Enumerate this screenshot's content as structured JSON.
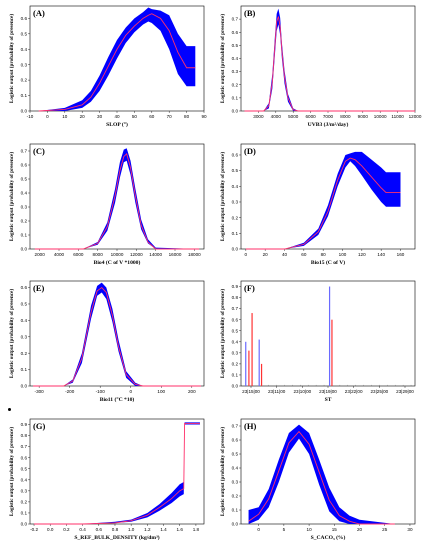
{
  "colors": {
    "band": "#0000ff",
    "mean": "#ff2f6a",
    "bar_red": "#ff3333",
    "bar_blue": "#6a6aff"
  },
  "ylabel": "Logistic output (probability of presence)",
  "chart_data": [
    {
      "tag": "(A)",
      "type": "area",
      "xlabel": "SLOP (°)",
      "xlim": [
        -10,
        90
      ],
      "ylim": [
        0,
        0.68
      ],
      "xticks": [
        "-10",
        "0",
        "10",
        "20",
        "30",
        "40",
        "50",
        "60",
        "70",
        "80",
        "90"
      ],
      "yticks": [
        "0.0",
        "0.1",
        "0.2",
        "0.3",
        "0.4",
        "0.5",
        "0.6"
      ],
      "x": [
        -5,
        10,
        20,
        25,
        30,
        35,
        40,
        45,
        50,
        55,
        58,
        60,
        65,
        70,
        75,
        80,
        85
      ],
      "mean": [
        0.0,
        0.01,
        0.04,
        0.09,
        0.18,
        0.29,
        0.4,
        0.49,
        0.55,
        0.6,
        0.62,
        0.63,
        0.6,
        0.52,
        0.38,
        0.28,
        0.28
      ],
      "lower": [
        0.0,
        0.0,
        0.02,
        0.06,
        0.13,
        0.23,
        0.34,
        0.44,
        0.51,
        0.56,
        0.58,
        0.57,
        0.52,
        0.4,
        0.24,
        0.16,
        0.16
      ],
      "upper": [
        0.0,
        0.02,
        0.07,
        0.13,
        0.23,
        0.35,
        0.46,
        0.54,
        0.6,
        0.64,
        0.67,
        0.66,
        0.65,
        0.62,
        0.5,
        0.42,
        0.42
      ]
    },
    {
      "tag": "(B)",
      "type": "area",
      "xlabel": "UVB3 (J/m²/day)",
      "xlim": [
        2000,
        12000
      ],
      "ylim": [
        0,
        0.8
      ],
      "xticks": [
        "3000",
        "4000",
        "5000",
        "6000",
        "7000",
        "8000",
        "9000",
        "10000",
        "11000",
        "12000"
      ],
      "yticks": [
        "0.0",
        "0.1",
        "0.2",
        "0.3",
        "0.4",
        "0.5",
        "0.6",
        "0.7"
      ],
      "x": [
        2200,
        3300,
        3600,
        3800,
        3950,
        4050,
        4150,
        4250,
        4350,
        4500,
        4700,
        5000,
        5300,
        12000
      ],
      "mean": [
        0.0,
        0.0,
        0.04,
        0.22,
        0.5,
        0.68,
        0.72,
        0.64,
        0.46,
        0.26,
        0.1,
        0.01,
        0.0,
        0.0
      ],
      "lower": [
        0.0,
        0.0,
        0.02,
        0.17,
        0.43,
        0.61,
        0.66,
        0.58,
        0.4,
        0.21,
        0.07,
        0.0,
        0.0,
        0.0
      ],
      "upper": [
        0.0,
        0.0,
        0.06,
        0.28,
        0.57,
        0.74,
        0.78,
        0.71,
        0.52,
        0.31,
        0.13,
        0.02,
        0.0,
        0.0
      ]
    },
    {
      "tag": "(C)",
      "type": "area",
      "xlabel": "Bio4 (C of V *1000)",
      "xlim": [
        1000,
        19000
      ],
      "ylim": [
        0,
        0.75
      ],
      "xticks": [
        "2000",
        "4000",
        "6000",
        "8000",
        "10000",
        "12000",
        "14000",
        "16000",
        "18000"
      ],
      "yticks": [
        "0.0",
        "0.1",
        "0.2",
        "0.3",
        "0.4",
        "0.5",
        "0.6",
        "0.7"
      ],
      "x": [
        1500,
        6500,
        8000,
        9000,
        9800,
        10300,
        10700,
        11000,
        11400,
        11900,
        12500,
        13200,
        14000,
        18500
      ],
      "mean": [
        0.0,
        0.0,
        0.04,
        0.16,
        0.38,
        0.56,
        0.66,
        0.68,
        0.58,
        0.38,
        0.17,
        0.05,
        0.0,
        0.0
      ],
      "lower": [
        0.0,
        0.0,
        0.03,
        0.13,
        0.33,
        0.51,
        0.62,
        0.63,
        0.53,
        0.33,
        0.14,
        0.04,
        0.0,
        0.0
      ],
      "upper": [
        0.0,
        0.0,
        0.05,
        0.19,
        0.43,
        0.62,
        0.71,
        0.72,
        0.63,
        0.43,
        0.21,
        0.07,
        0.01,
        0.0
      ]
    },
    {
      "tag": "(D)",
      "type": "area",
      "xlabel": "Bio15 (C of V)",
      "xlim": [
        -5,
        175
      ],
      "ylim": [
        0,
        0.67
      ],
      "xticks": [
        "0",
        "20",
        "40",
        "60",
        "80",
        "100",
        "120",
        "140",
        "160"
      ],
      "yticks": [
        "0.0",
        "0.1",
        "0.2",
        "0.3",
        "0.4",
        "0.5",
        "0.6"
      ],
      "x": [
        0,
        40,
        60,
        75,
        85,
        95,
        103,
        108,
        113,
        120,
        130,
        140,
        145,
        160
      ],
      "mean": [
        0.0,
        0.0,
        0.03,
        0.11,
        0.24,
        0.44,
        0.56,
        0.58,
        0.57,
        0.53,
        0.46,
        0.39,
        0.36,
        0.36
      ],
      "lower": [
        0.0,
        0.0,
        0.02,
        0.09,
        0.21,
        0.4,
        0.52,
        0.56,
        0.53,
        0.47,
        0.38,
        0.3,
        0.27,
        0.27
      ],
      "upper": [
        0.0,
        0.0,
        0.04,
        0.13,
        0.28,
        0.48,
        0.6,
        0.61,
        0.62,
        0.62,
        0.57,
        0.52,
        0.49,
        0.49
      ]
    },
    {
      "tag": "(E)",
      "type": "area",
      "xlabel": "Bio11 (°C *10)",
      "xlim": [
        -330,
        240
      ],
      "ylim": [
        0,
        0.64
      ],
      "xticks": [
        "-300",
        "-200",
        "-100",
        "0",
        "100",
        "200"
      ],
      "yticks": [
        "0.0",
        "0.1",
        "0.2",
        "0.3",
        "0.4",
        "0.5",
        "0.6"
      ],
      "x": [
        -320,
        -220,
        -190,
        -160,
        -130,
        -110,
        -95,
        -80,
        -60,
        -40,
        -15,
        15,
        40,
        230
      ],
      "mean": [
        0.0,
        0.0,
        0.03,
        0.17,
        0.45,
        0.58,
        0.6,
        0.57,
        0.43,
        0.24,
        0.07,
        0.01,
        0.0,
        0.0
      ],
      "lower": [
        0.0,
        0.0,
        0.02,
        0.14,
        0.41,
        0.55,
        0.57,
        0.53,
        0.39,
        0.21,
        0.05,
        0.0,
        0.0,
        0.0
      ],
      "upper": [
        0.0,
        0.0,
        0.04,
        0.2,
        0.49,
        0.61,
        0.63,
        0.6,
        0.47,
        0.28,
        0.09,
        0.02,
        0.0,
        0.0
      ]
    },
    {
      "tag": "(F)",
      "type": "bar",
      "xlabel": "ST",
      "ylim": [
        0,
        0.95
      ],
      "xticks": [
        "23|15|00",
        "23|11|00",
        "23|10|00",
        "23|19|00",
        "23|22|00",
        "23|25|00",
        "23|29|00"
      ],
      "yticks": [
        "0.0",
        "0.1",
        "0.2",
        "0.3",
        "0.4",
        "0.5",
        "0.6",
        "0.7",
        "0.8",
        "0.9"
      ],
      "bars": [
        {
          "x": 0.6,
          "value": 0.4,
          "color": "#6a6aff"
        },
        {
          "x": 1.0,
          "value": 0.32,
          "color": "#ff3333"
        },
        {
          "x": 1.4,
          "value": 0.66,
          "color": "#ff3333"
        },
        {
          "x": 2.3,
          "value": 0.42,
          "color": "#6a6aff"
        },
        {
          "x": 2.6,
          "value": 0.2,
          "color": "#ff3333"
        },
        {
          "x": 11.2,
          "value": 0.9,
          "color": "#6a6aff"
        },
        {
          "x": 11.5,
          "value": 0.6,
          "color": "#ff3333"
        }
      ],
      "xmax": 22
    },
    {
      "tag": "(G)",
      "type": "area",
      "xlabel": "S_REF_BULK_DENSITY (kg/dm³)",
      "xlim": [
        -0.25,
        1.9
      ],
      "ylim": [
        0,
        0.95
      ],
      "xticks": [
        "-0.2",
        "0.0",
        "0.2",
        "0.4",
        "0.6",
        "0.8",
        "1.0",
        "1.2",
        "1.4",
        "1.6",
        "1.8"
      ],
      "yticks": [
        "0.0",
        "0.1",
        "0.2",
        "0.3",
        "0.4",
        "0.5",
        "0.6",
        "0.7",
        "0.8",
        "0.9"
      ],
      "x": [
        -0.2,
        0.4,
        0.8,
        1.0,
        1.2,
        1.35,
        1.5,
        1.6,
        1.65,
        1.66,
        1.85
      ],
      "mean": [
        0.0,
        0.0,
        0.01,
        0.03,
        0.08,
        0.15,
        0.23,
        0.3,
        0.32,
        0.91,
        0.91
      ],
      "lower": [
        0.0,
        0.0,
        0.01,
        0.02,
        0.06,
        0.12,
        0.19,
        0.25,
        0.27,
        0.9,
        0.9
      ],
      "upper": [
        0.0,
        0.0,
        0.02,
        0.04,
        0.1,
        0.18,
        0.28,
        0.36,
        0.38,
        0.92,
        0.92
      ]
    },
    {
      "tag": "(H)",
      "type": "area",
      "xlabel": "S_CACO₃ (%)",
      "xlim": [
        -3.5,
        31
      ],
      "ylim": [
        0,
        0.75
      ],
      "xticks": [
        "0",
        "5",
        "10",
        "15",
        "20",
        "25",
        "30"
      ],
      "yticks": [
        "0.0",
        "0.1",
        "0.2",
        "0.3",
        "0.4",
        "0.5",
        "0.6",
        "0.7"
      ],
      "x": [
        -2,
        0,
        2,
        4,
        6,
        8,
        10,
        12,
        14,
        16,
        18,
        20,
        27
      ],
      "mean": [
        0.02,
        0.07,
        0.18,
        0.38,
        0.58,
        0.66,
        0.57,
        0.37,
        0.17,
        0.06,
        0.02,
        0.0,
        0.0
      ],
      "lower": [
        0.0,
        0.03,
        0.12,
        0.3,
        0.51,
        0.61,
        0.5,
        0.28,
        0.09,
        0.02,
        0.0,
        0.0,
        0.0
      ],
      "upper": [
        0.1,
        0.12,
        0.25,
        0.46,
        0.65,
        0.71,
        0.65,
        0.46,
        0.26,
        0.12,
        0.06,
        0.03,
        0.0
      ]
    }
  ]
}
